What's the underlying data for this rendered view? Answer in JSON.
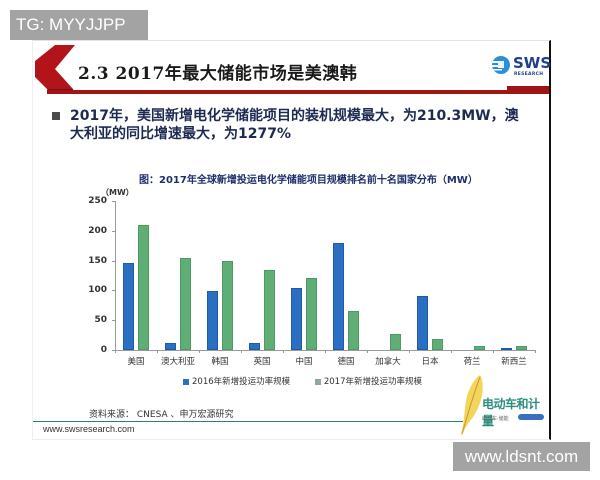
{
  "watermarks": {
    "top_left": "TG: MYYJJPP",
    "bottom_right": "www.ldsnt.com"
  },
  "header": {
    "title": "2.3 2017年最大储能市场是美澳韩",
    "logo": {
      "name": "SWS",
      "sub": "RESEARCH"
    },
    "accent_color": "#a01418"
  },
  "bullet": {
    "text": "2017年，美国新增电化学储能项目的装机规模最大，为210.3MW，澳大利亚的同比增速最大，为1277%"
  },
  "chart": {
    "title": "图：2017年全球新增投运电化学储能项目规模排名前十名国家分布（MW）",
    "unit": "（MW）",
    "legend": [
      "2016年新增投运功率规模",
      "2017年新增投运功率规模"
    ]
  },
  "chart_data": {
    "type": "bar",
    "title": "图：2017年全球新增投运电化学储能项目规模排名前十名国家分布（MW）",
    "xlabel": "",
    "ylabel": "（MW）",
    "ylim": [
      0,
      250
    ],
    "yticks": [
      0,
      50,
      100,
      150,
      200,
      250
    ],
    "grid": false,
    "legend_position": "bottom",
    "categories": [
      "美国",
      "澳大利亚",
      "韩国",
      "英国",
      "中国",
      "德国",
      "加拿大",
      "日本",
      "荷兰",
      "新西兰"
    ],
    "series": [
      {
        "name": "2016年新增投运功率规模",
        "color": "#2b6fc2",
        "values": [
          146,
          11,
          99,
          12,
          104,
          180,
          0,
          90,
          0,
          1
        ]
      },
      {
        "name": "2017年新增投运功率规模",
        "color": "#5fae75",
        "values": [
          210.3,
          155,
          150,
          134,
          121,
          66,
          27,
          19,
          7,
          6
        ]
      }
    ]
  },
  "footer": {
    "source": "资料来源： CNESA 、申万宏源研究",
    "url": "www.swsresearch.com",
    "brand": {
      "name": "电动车和计量",
      "sub": "电动车·储能"
    }
  }
}
